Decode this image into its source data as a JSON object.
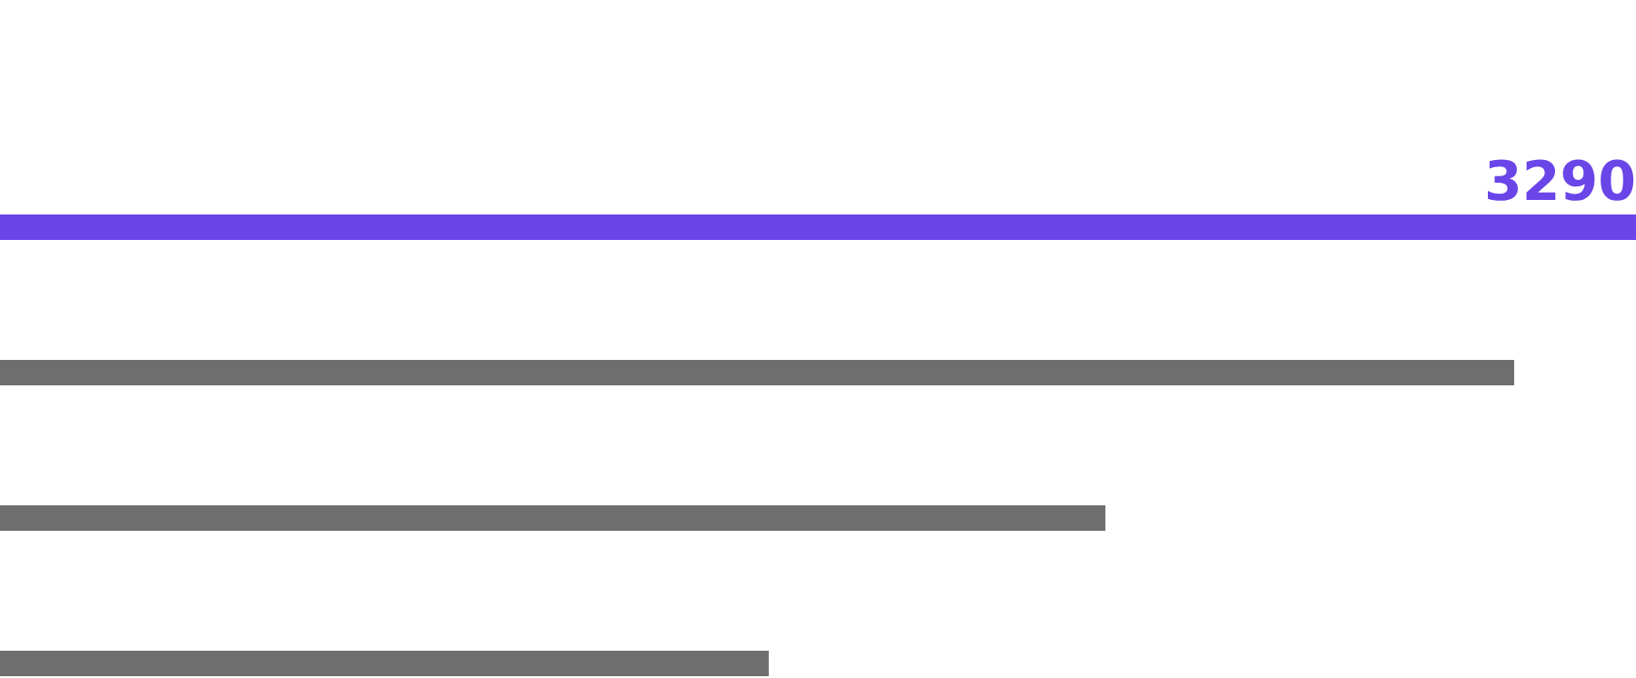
{
  "chart_data": {
    "type": "bar",
    "orientation": "horizontal",
    "categories": [
      null,
      null,
      null,
      null
    ],
    "values": [
      3290,
      3045,
      2223,
      1546
    ],
    "value_labels": [
      "3290",
      null,
      null,
      null
    ],
    "colors": [
      "#6a45e8",
      "#6e6e6e",
      "#6e6e6e",
      "#6e6e6e"
    ]
  }
}
